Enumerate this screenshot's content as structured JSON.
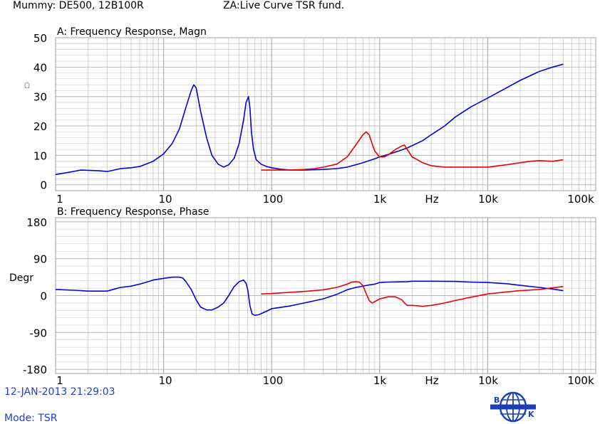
{
  "header": {
    "left": "Mummy: DE500, 12B100R",
    "right": "ZA:Live Curve   TSR fund."
  },
  "footer": {
    "timestamp": "12-JAN-2013 21:29:03",
    "mode": "Mode: TSR"
  },
  "logo": {
    "letter_left": "B",
    "letter_right": "K"
  },
  "colors": {
    "blue": "#0000dd",
    "red": "#ee0000",
    "grid": "#c8c8c8",
    "frame": "#b0b0b0"
  },
  "chart_data": [
    {
      "type": "line",
      "title": "A: Frequency Response, Magn",
      "ylabel": "Ω",
      "xscale": "log",
      "xlim": [
        1,
        100000
      ],
      "ylim": [
        -2,
        50
      ],
      "yticks": [
        0,
        10,
        20,
        30,
        40,
        50
      ],
      "xtick_labels": [
        [
          1,
          "1"
        ],
        [
          10,
          "10"
        ],
        [
          100,
          "100"
        ],
        [
          1000,
          "1k"
        ],
        [
          2500,
          "Hz"
        ],
        [
          10000,
          "10k"
        ],
        [
          100000,
          "100k"
        ]
      ],
      "grid": true,
      "series": [
        {
          "color": "blue",
          "x": [
            1,
            1.3,
            1.7,
            2.5,
            3,
            4,
            5,
            6,
            8,
            10,
            12,
            14,
            16,
            18,
            19,
            20,
            22,
            25,
            28,
            32,
            36,
            40,
            45,
            50,
            55,
            58,
            61,
            63,
            65,
            68,
            72,
            80,
            90,
            100,
            120,
            150,
            200,
            300,
            400,
            500,
            600,
            700,
            800,
            900,
            1000,
            1200,
            1500,
            1800,
            2000,
            2500,
            3000,
            4000,
            5000,
            7000,
            10000,
            15000,
            20000,
            30000,
            40000,
            50000
          ],
          "y": [
            3.5,
            4.2,
            5,
            4.8,
            4.5,
            5.5,
            5.8,
            6.2,
            8,
            10.5,
            14,
            19,
            26,
            32,
            34,
            33,
            25,
            16,
            10,
            7,
            6,
            6.8,
            9,
            14,
            22,
            28,
            30,
            26,
            18,
            12,
            8.5,
            7,
            6.2,
            5.8,
            5.3,
            5,
            5,
            5.2,
            5.5,
            6,
            6.8,
            7.5,
            8.2,
            8.8,
            9.5,
            10.3,
            11.5,
            12.5,
            13.3,
            15,
            17,
            20,
            23,
            26.5,
            29.5,
            33,
            35.5,
            38.5,
            40,
            41
          ]
        },
        {
          "color": "red",
          "x": [
            80,
            100,
            150,
            200,
            250,
            300,
            400,
            500,
            600,
            700,
            750,
            800,
            850,
            900,
            1000,
            1100,
            1200,
            1400,
            1600,
            1700,
            1800,
            2000,
            2500,
            3000,
            4000,
            5000,
            7000,
            10000,
            15000,
            20000,
            25000,
            30000,
            40000,
            50000
          ],
          "y": [
            5,
            5,
            5,
            5.2,
            5.5,
            6,
            7,
            9.5,
            13.5,
            17,
            18,
            17,
            14,
            11.5,
            9.5,
            9.5,
            10.2,
            12,
            13.2,
            13.5,
            12,
            9.5,
            7.5,
            6.5,
            6,
            6,
            6,
            6,
            6.8,
            7.5,
            8,
            8.2,
            8,
            8.5
          ]
        }
      ]
    },
    {
      "type": "line",
      "title": "B: Frequency Response, Phase",
      "ylabel": "Degr",
      "xscale": "log",
      "xlim": [
        1,
        100000
      ],
      "ylim": [
        -190,
        190
      ],
      "yticks": [
        -180,
        -90,
        0,
        90,
        180
      ],
      "xtick_labels": [
        [
          1,
          "1"
        ],
        [
          10,
          "10"
        ],
        [
          100,
          "100"
        ],
        [
          1000,
          "1k"
        ],
        [
          2500,
          "Hz"
        ],
        [
          10000,
          "10k"
        ],
        [
          100000,
          "100k"
        ]
      ],
      "grid": true,
      "series": [
        {
          "color": "blue",
          "x": [
            1,
            1.5,
            2,
            2.5,
            3,
            3.5,
            4,
            5,
            6,
            7,
            8,
            10,
            12,
            14,
            15,
            16,
            18,
            20,
            22,
            25,
            28,
            32,
            36,
            40,
            45,
            50,
            55,
            58,
            60,
            63,
            66,
            70,
            75,
            80,
            90,
            100,
            150,
            200,
            300,
            400,
            500,
            600,
            700,
            800,
            900,
            1000,
            1200,
            1500,
            1800,
            2000,
            3000,
            5000,
            7000,
            10000,
            15000,
            20000,
            30000,
            40000,
            50000
          ],
          "y": [
            15,
            13,
            11,
            11,
            11,
            16,
            20,
            23,
            28,
            33,
            38,
            42,
            45,
            45,
            43,
            35,
            15,
            -10,
            -28,
            -35,
            -35,
            -28,
            -18,
            0,
            22,
            34,
            38,
            30,
            15,
            -25,
            -45,
            -48,
            -47,
            -44,
            -38,
            -32,
            -25,
            -18,
            -8,
            3,
            14,
            20,
            23,
            26,
            28,
            32,
            33,
            33.5,
            34,
            35,
            35,
            34.5,
            33,
            32,
            29,
            25,
            20,
            16,
            12
          ]
        },
        {
          "color": "red",
          "x": [
            80,
            100,
            200,
            300,
            400,
            500,
            550,
            600,
            650,
            700,
            750,
            800,
            850,
            900,
            1000,
            1200,
            1400,
            1600,
            1700,
            1800,
            2000,
            2500,
            3000,
            4000,
            5000,
            7000,
            10000,
            15000,
            20000,
            30000,
            40000,
            50000
          ],
          "y": [
            4,
            5,
            10,
            14,
            20,
            28,
            33,
            34,
            33,
            24,
            5,
            -12,
            -18,
            -15,
            -8,
            -3,
            -3,
            -10,
            -18,
            -24,
            -24,
            -26,
            -24,
            -18,
            -12,
            -4,
            4,
            9,
            12,
            15,
            19,
            22
          ]
        }
      ]
    }
  ]
}
